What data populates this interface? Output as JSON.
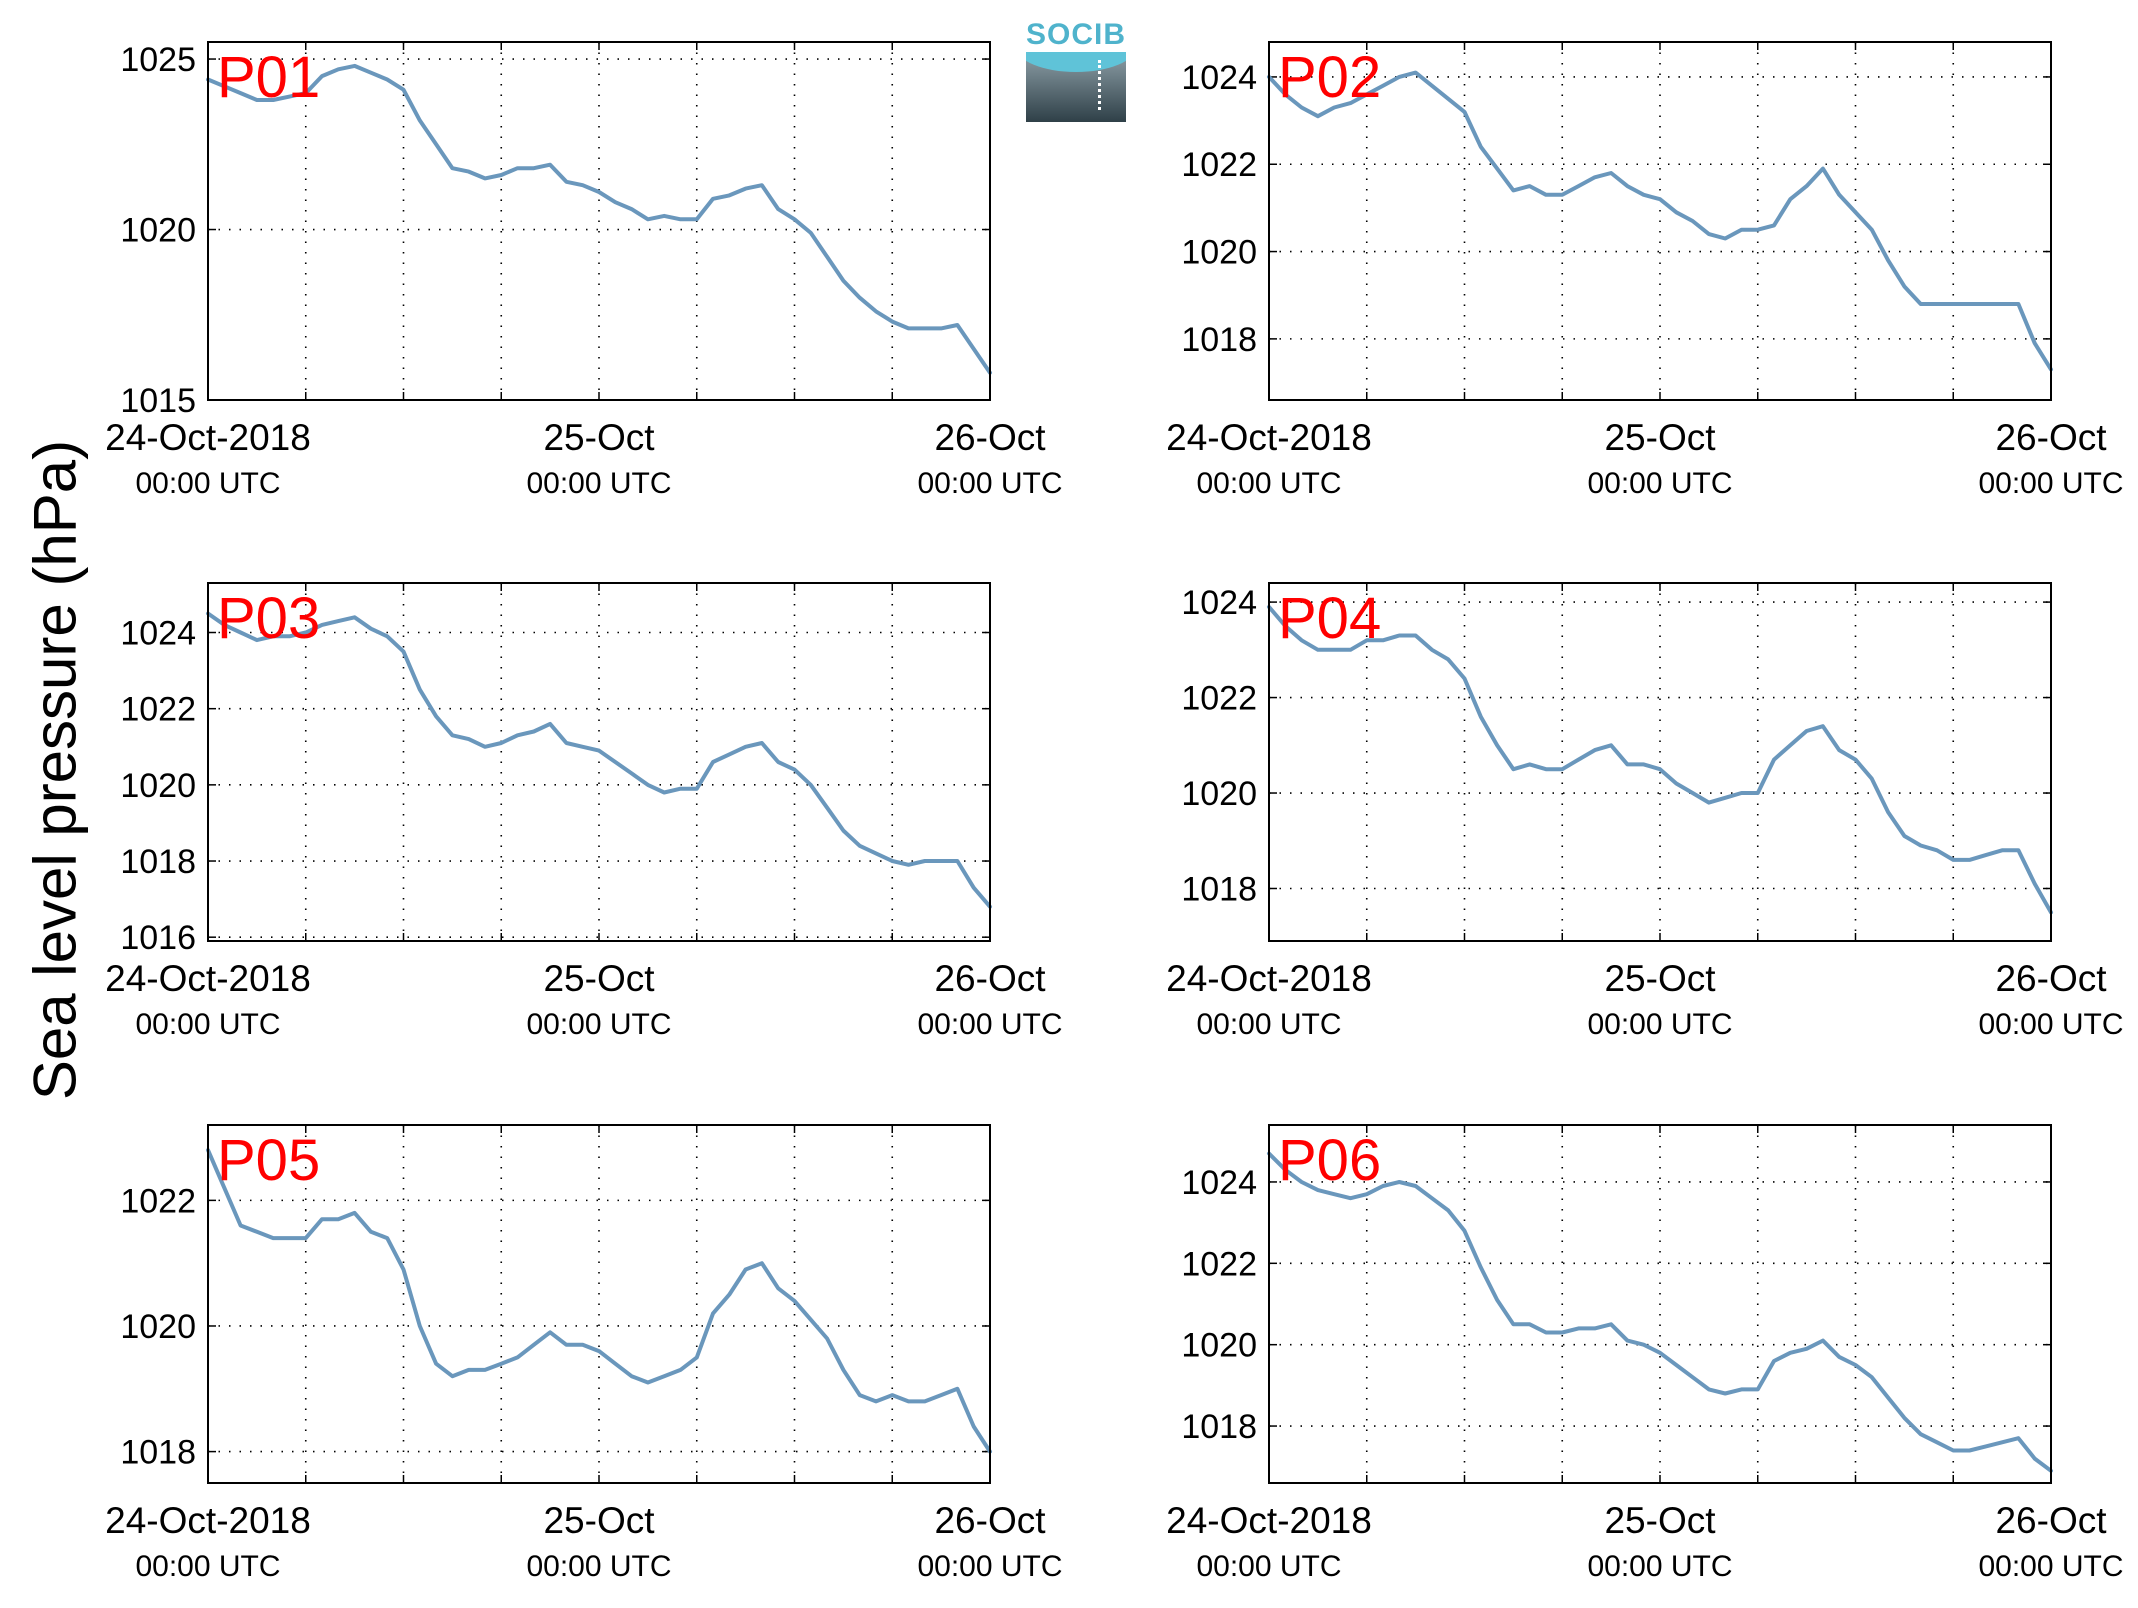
{
  "figure": {
    "ylabel": "Sea level pressure (hPa)",
    "logo_text": "SOCIB",
    "line_color": "#6a97bc",
    "panel_label_color": "#ff0000"
  },
  "chart_data": [
    {
      "type": "line",
      "name": "P01",
      "xlabel": "",
      "ylabel": "",
      "xlim": [
        0,
        48
      ],
      "ylim": [
        1015,
        1025.5
      ],
      "yticks": [
        1015,
        1020,
        1025
      ],
      "xtick_labels": [
        {
          "x": 0,
          "line1": "24-Oct-2018",
          "line2": "00:00 UTC"
        },
        {
          "x": 24,
          "line1": "25-Oct",
          "line2": "00:00 UTC"
        },
        {
          "x": 48,
          "line1": "26-Oct",
          "line2": "00:00 UTC"
        }
      ],
      "grid": true,
      "x": [
        0,
        1,
        2,
        3,
        4,
        5,
        6,
        7,
        8,
        9,
        10,
        11,
        12,
        13,
        14,
        15,
        16,
        17,
        18,
        19,
        20,
        21,
        22,
        23,
        24,
        25,
        26,
        27,
        28,
        29,
        30,
        31,
        32,
        33,
        34,
        35,
        36,
        37,
        38,
        39,
        40,
        41,
        42,
        43,
        44,
        45,
        46,
        47,
        48
      ],
      "y": [
        1024.4,
        1024.2,
        1024.0,
        1023.8,
        1023.8,
        1023.9,
        1024.0,
        1024.5,
        1024.7,
        1024.8,
        1024.6,
        1024.4,
        1024.1,
        1023.2,
        1022.5,
        1021.8,
        1021.7,
        1021.5,
        1021.6,
        1021.8,
        1021.8,
        1021.9,
        1021.4,
        1021.3,
        1021.1,
        1020.8,
        1020.6,
        1020.3,
        1020.4,
        1020.3,
        1020.3,
        1020.9,
        1021.0,
        1021.2,
        1021.3,
        1020.6,
        1020.3,
        1019.9,
        1019.2,
        1018.5,
        1018.0,
        1017.6,
        1017.3,
        1017.1,
        1017.1,
        1017.1,
        1017.2,
        1016.5,
        1015.8
      ]
    },
    {
      "type": "line",
      "name": "P02",
      "xlabel": "",
      "ylabel": "",
      "xlim": [
        0,
        48
      ],
      "ylim": [
        1016.6,
        1024.8
      ],
      "yticks": [
        1018,
        1020,
        1022,
        1024
      ],
      "xtick_labels": [
        {
          "x": 0,
          "line1": "24-Oct-2018",
          "line2": "00:00 UTC"
        },
        {
          "x": 24,
          "line1": "25-Oct",
          "line2": "00:00 UTC"
        },
        {
          "x": 48,
          "line1": "26-Oct",
          "line2": "00:00 UTC"
        }
      ],
      "grid": true,
      "x": [
        0,
        1,
        2,
        3,
        4,
        5,
        6,
        7,
        8,
        9,
        10,
        11,
        12,
        13,
        14,
        15,
        16,
        17,
        18,
        19,
        20,
        21,
        22,
        23,
        24,
        25,
        26,
        27,
        28,
        29,
        30,
        31,
        32,
        33,
        34,
        35,
        36,
        37,
        38,
        39,
        40,
        41,
        42,
        43,
        44,
        45,
        46,
        47,
        48
      ],
      "y": [
        1024.0,
        1023.6,
        1023.3,
        1023.1,
        1023.3,
        1023.4,
        1023.6,
        1023.8,
        1024.0,
        1024.1,
        1023.8,
        1023.5,
        1023.2,
        1022.4,
        1021.9,
        1021.4,
        1021.5,
        1021.3,
        1021.3,
        1021.5,
        1021.7,
        1021.8,
        1021.5,
        1021.3,
        1021.2,
        1020.9,
        1020.7,
        1020.4,
        1020.3,
        1020.5,
        1020.5,
        1020.6,
        1021.2,
        1021.5,
        1021.9,
        1021.3,
        1020.9,
        1020.5,
        1019.8,
        1019.2,
        1018.8,
        1018.8,
        1018.8,
        1018.8,
        1018.8,
        1018.8,
        1018.8,
        1017.9,
        1017.3
      ]
    },
    {
      "type": "line",
      "name": "P03",
      "xlabel": "",
      "ylabel": "",
      "xlim": [
        0,
        48
      ],
      "ylim": [
        1015.9,
        1025.3
      ],
      "yticks": [
        1016,
        1018,
        1020,
        1022,
        1024
      ],
      "xtick_labels": [
        {
          "x": 0,
          "line1": "24-Oct-2018",
          "line2": "00:00 UTC"
        },
        {
          "x": 24,
          "line1": "25-Oct",
          "line2": "00:00 UTC"
        },
        {
          "x": 48,
          "line1": "26-Oct",
          "line2": "00:00 UTC"
        }
      ],
      "grid": true,
      "x": [
        0,
        1,
        2,
        3,
        4,
        5,
        6,
        7,
        8,
        9,
        10,
        11,
        12,
        13,
        14,
        15,
        16,
        17,
        18,
        19,
        20,
        21,
        22,
        23,
        24,
        25,
        26,
        27,
        28,
        29,
        30,
        31,
        32,
        33,
        34,
        35,
        36,
        37,
        38,
        39,
        40,
        41,
        42,
        43,
        44,
        45,
        46,
        47,
        48
      ],
      "y": [
        1024.5,
        1024.2,
        1024.0,
        1023.8,
        1023.9,
        1023.9,
        1024.0,
        1024.2,
        1024.3,
        1024.4,
        1024.1,
        1023.9,
        1023.5,
        1022.5,
        1021.8,
        1021.3,
        1021.2,
        1021.0,
        1021.1,
        1021.3,
        1021.4,
        1021.6,
        1021.1,
        1021.0,
        1020.9,
        1020.6,
        1020.3,
        1020.0,
        1019.8,
        1019.9,
        1019.9,
        1020.6,
        1020.8,
        1021.0,
        1021.1,
        1020.6,
        1020.4,
        1020.0,
        1019.4,
        1018.8,
        1018.4,
        1018.2,
        1018.0,
        1017.9,
        1018.0,
        1018.0,
        1018.0,
        1017.3,
        1016.8
      ]
    },
    {
      "type": "line",
      "name": "P04",
      "xlabel": "",
      "ylabel": "",
      "xlim": [
        0,
        48
      ],
      "ylim": [
        1016.9,
        1024.4
      ],
      "yticks": [
        1018,
        1020,
        1022,
        1024
      ],
      "xtick_labels": [
        {
          "x": 0,
          "line1": "24-Oct-2018",
          "line2": "00:00 UTC"
        },
        {
          "x": 24,
          "line1": "25-Oct",
          "line2": "00:00 UTC"
        },
        {
          "x": 48,
          "line1": "26-Oct",
          "line2": "00:00 UTC"
        }
      ],
      "grid": true,
      "x": [
        0,
        1,
        2,
        3,
        4,
        5,
        6,
        7,
        8,
        9,
        10,
        11,
        12,
        13,
        14,
        15,
        16,
        17,
        18,
        19,
        20,
        21,
        22,
        23,
        24,
        25,
        26,
        27,
        28,
        29,
        30,
        31,
        32,
        33,
        34,
        35,
        36,
        37,
        38,
        39,
        40,
        41,
        42,
        43,
        44,
        45,
        46,
        47,
        48
      ],
      "y": [
        1023.9,
        1023.5,
        1023.2,
        1023.0,
        1023.0,
        1023.0,
        1023.2,
        1023.2,
        1023.3,
        1023.3,
        1023.0,
        1022.8,
        1022.4,
        1021.6,
        1021.0,
        1020.5,
        1020.6,
        1020.5,
        1020.5,
        1020.7,
        1020.9,
        1021.0,
        1020.6,
        1020.6,
        1020.5,
        1020.2,
        1020.0,
        1019.8,
        1019.9,
        1020.0,
        1020.0,
        1020.7,
        1021.0,
        1021.3,
        1021.4,
        1020.9,
        1020.7,
        1020.3,
        1019.6,
        1019.1,
        1018.9,
        1018.8,
        1018.6,
        1018.6,
        1018.7,
        1018.8,
        1018.8,
        1018.1,
        1017.5
      ]
    },
    {
      "type": "line",
      "name": "P05",
      "xlabel": "",
      "ylabel": "",
      "xlim": [
        0,
        48
      ],
      "ylim": [
        1017.5,
        1023.2
      ],
      "yticks": [
        1018,
        1020,
        1022
      ],
      "xtick_labels": [
        {
          "x": 0,
          "line1": "24-Oct-2018",
          "line2": "00:00 UTC"
        },
        {
          "x": 24,
          "line1": "25-Oct",
          "line2": "00:00 UTC"
        },
        {
          "x": 48,
          "line1": "26-Oct",
          "line2": "00:00 UTC"
        }
      ],
      "grid": true,
      "x": [
        0,
        1,
        2,
        3,
        4,
        5,
        6,
        7,
        8,
        9,
        10,
        11,
        12,
        13,
        14,
        15,
        16,
        17,
        18,
        19,
        20,
        21,
        22,
        23,
        24,
        25,
        26,
        27,
        28,
        29,
        30,
        31,
        32,
        33,
        34,
        35,
        36,
        37,
        38,
        39,
        40,
        41,
        42,
        43,
        44,
        45,
        46,
        47,
        48
      ],
      "y": [
        1022.8,
        1022.2,
        1021.6,
        1021.5,
        1021.4,
        1021.4,
        1021.4,
        1021.7,
        1021.7,
        1021.8,
        1021.5,
        1021.4,
        1020.9,
        1020.0,
        1019.4,
        1019.2,
        1019.3,
        1019.3,
        1019.4,
        1019.5,
        1019.7,
        1019.9,
        1019.7,
        1019.7,
        1019.6,
        1019.4,
        1019.2,
        1019.1,
        1019.2,
        1019.3,
        1019.5,
        1020.2,
        1020.5,
        1020.9,
        1021.0,
        1020.6,
        1020.4,
        1020.1,
        1019.8,
        1019.3,
        1018.9,
        1018.8,
        1018.9,
        1018.8,
        1018.8,
        1018.9,
        1019.0,
        1018.4,
        1018.0
      ]
    },
    {
      "type": "line",
      "name": "P06",
      "xlabel": "",
      "ylabel": "",
      "xlim": [
        0,
        48
      ],
      "ylim": [
        1016.6,
        1025.4
      ],
      "yticks": [
        1018,
        1020,
        1022,
        1024
      ],
      "xtick_labels": [
        {
          "x": 0,
          "line1": "24-Oct-2018",
          "line2": "00:00 UTC"
        },
        {
          "x": 24,
          "line1": "25-Oct",
          "line2": "00:00 UTC"
        },
        {
          "x": 48,
          "line1": "26-Oct",
          "line2": "00:00 UTC"
        }
      ],
      "grid": true,
      "x": [
        0,
        1,
        2,
        3,
        4,
        5,
        6,
        7,
        8,
        9,
        10,
        11,
        12,
        13,
        14,
        15,
        16,
        17,
        18,
        19,
        20,
        21,
        22,
        23,
        24,
        25,
        26,
        27,
        28,
        29,
        30,
        31,
        32,
        33,
        34,
        35,
        36,
        37,
        38,
        39,
        40,
        41,
        42,
        43,
        44,
        45,
        46,
        47,
        48
      ],
      "y": [
        1024.7,
        1024.3,
        1024.0,
        1023.8,
        1023.7,
        1023.6,
        1023.7,
        1023.9,
        1024.0,
        1023.9,
        1023.6,
        1023.3,
        1022.8,
        1021.9,
        1021.1,
        1020.5,
        1020.5,
        1020.3,
        1020.3,
        1020.4,
        1020.4,
        1020.5,
        1020.1,
        1020.0,
        1019.8,
        1019.5,
        1019.2,
        1018.9,
        1018.8,
        1018.9,
        1018.9,
        1019.6,
        1019.8,
        1019.9,
        1020.1,
        1019.7,
        1019.5,
        1019.2,
        1018.7,
        1018.2,
        1017.8,
        1017.6,
        1017.4,
        1017.4,
        1017.5,
        1017.6,
        1017.7,
        1017.2,
        1016.9
      ]
    }
  ]
}
